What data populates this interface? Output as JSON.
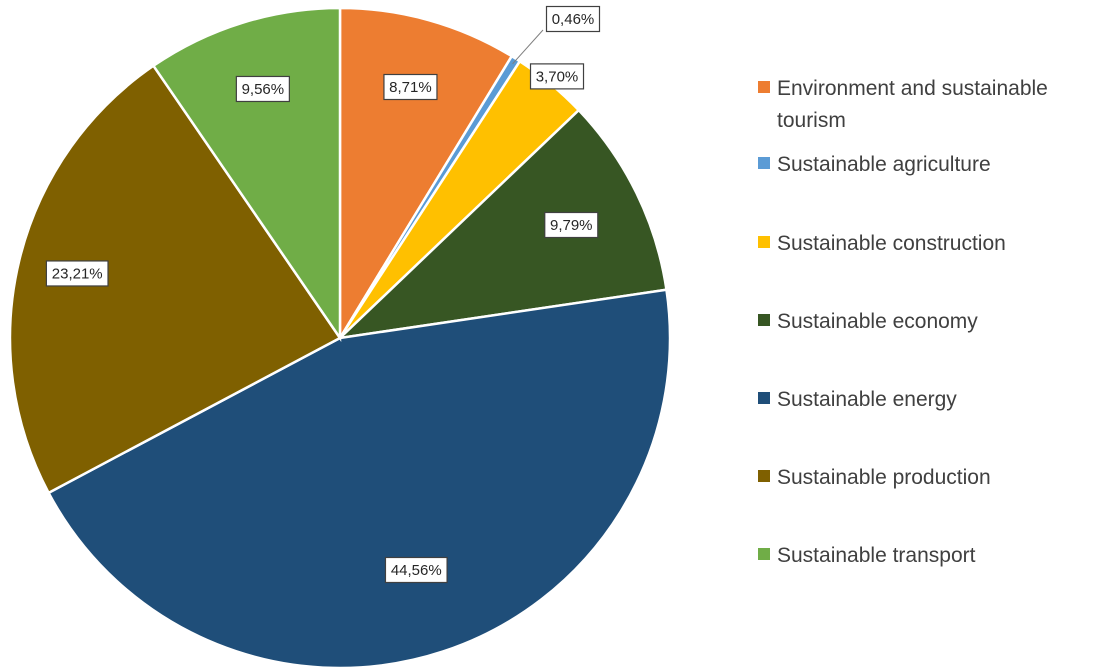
{
  "chart_data": {
    "type": "pie",
    "title": "",
    "legend_position": "right",
    "slices": [
      {
        "name": "Environment and sustainable tourism",
        "legend_lines": [
          "Environment and sustainable",
          "tourism"
        ],
        "value": 8.71,
        "label": "8,71%",
        "color": "#ED7D31"
      },
      {
        "name": "Sustainable agriculture",
        "legend_lines": [
          "Sustainable agriculture"
        ],
        "value": 0.46,
        "label": "0,46%",
        "color": "#5B9BD5"
      },
      {
        "name": "Sustainable construction",
        "legend_lines": [
          "Sustainable construction"
        ],
        "value": 3.7,
        "label": "3,70%",
        "color": "#FFC000"
      },
      {
        "name": "Sustainable economy",
        "legend_lines": [
          "Sustainable economy"
        ],
        "value": 9.79,
        "label": "9,79%",
        "color": "#375623"
      },
      {
        "name": "Sustainable energy",
        "legend_lines": [
          "Sustainable energy"
        ],
        "value": 44.56,
        "label": "44,56%",
        "color": "#1F4E79"
      },
      {
        "name": "Sustainable production",
        "legend_lines": [
          "Sustainable production"
        ],
        "value": 23.21,
        "label": "23,21%",
        "color": "#7F6000"
      },
      {
        "name": "Sustainable transport",
        "legend_lines": [
          "Sustainable transport"
        ],
        "value": 9.56,
        "label": "9,56%",
        "color": "#70AD47"
      }
    ]
  }
}
